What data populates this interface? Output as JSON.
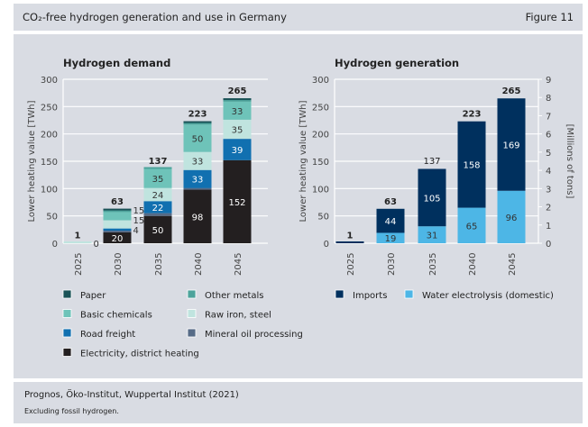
{
  "header": {
    "title": "CO₂-free hydrogen generation and use in Germany",
    "figure": "Figure 11"
  },
  "footer": {
    "source": "Prognos, Öko-Institut, Wuppertal Institut (2021)",
    "note": "Excluding fossil hydrogen."
  },
  "chart_data": [
    {
      "type": "bar",
      "stacked": true,
      "title": "Hydrogen demand",
      "ylabel": "Lower heating value [TWh]",
      "ylim": [
        0,
        300
      ],
      "yticks": [
        0,
        50,
        100,
        150,
        200,
        250,
        300
      ],
      "grid": true,
      "categories": [
        "2025",
        "2030",
        "2035",
        "2040",
        "2045"
      ],
      "totals": [
        "1",
        "63",
        "137",
        "223",
        "265"
      ],
      "series": [
        {
          "name": "Electricity, district heating",
          "color": "#231f20",
          "values": [
            0,
            20,
            50,
            98,
            152
          ],
          "labels": [
            null,
            "20",
            "50",
            "98",
            "152"
          ]
        },
        {
          "name": "Mineral oil processing",
          "color": "#566b87",
          "values": [
            0,
            3,
            5,
            3,
            0
          ],
          "labels": [
            null,
            null,
            null,
            null,
            null
          ]
        },
        {
          "name": "Road freight",
          "color": "#1170b0",
          "values": [
            0,
            4,
            22,
            33,
            39
          ],
          "labels": [
            null,
            "4",
            "22",
            "33",
            "39"
          ]
        },
        {
          "name": "Raw iron, steel",
          "color": "#c0e4df",
          "values": [
            0,
            15,
            24,
            33,
            35
          ],
          "labels": [
            "0",
            "15",
            "24",
            "33",
            "35"
          ]
        },
        {
          "name": "Basic chemicals",
          "color": "#6ec3b9",
          "values": [
            0,
            15,
            35,
            50,
            33
          ],
          "labels": [
            null,
            "15",
            "35",
            "50",
            "33"
          ]
        },
        {
          "name": "Other metals",
          "color": "#4da39b",
          "values": [
            0,
            3,
            1,
            3,
            3
          ],
          "labels": [
            null,
            null,
            null,
            null,
            null
          ]
        },
        {
          "name": "Paper",
          "color": "#1a5357",
          "values": [
            0,
            3,
            0,
            3,
            3
          ],
          "labels": [
            null,
            null,
            null,
            null,
            null
          ]
        }
      ],
      "legend_order": [
        "Paper",
        "Other metals",
        "Basic chemicals",
        "Raw iron, steel",
        "Road freight",
        "Mineral oil processing",
        "Electricity, district heating"
      ]
    },
    {
      "type": "bar",
      "stacked": true,
      "title": "Hydrogen generation",
      "ylabel": "Lower heating value [TWh]",
      "y2label": "[Millions of tons]",
      "ylim": [
        0,
        300
      ],
      "yticks": [
        0,
        50,
        100,
        150,
        200,
        250,
        300
      ],
      "y2lim": [
        0,
        9
      ],
      "y2ticks": [
        0,
        1,
        2,
        3,
        4,
        5,
        6,
        7,
        8,
        9
      ],
      "grid": true,
      "categories": [
        "2025",
        "2030",
        "2035",
        "2040",
        "2045"
      ],
      "totals": [
        "1",
        "63",
        "137",
        "223",
        "265"
      ],
      "series": [
        {
          "name": "Water electrolysis (domestic)",
          "color": "#4db6e6",
          "values": [
            0,
            19,
            31,
            65,
            96
          ],
          "labels": [
            null,
            "19",
            "31",
            "65",
            "96"
          ]
        },
        {
          "name": "Imports",
          "color": "#00305e",
          "values": [
            1,
            44,
            105,
            158,
            169
          ],
          "labels": [
            null,
            "44",
            "105",
            "158",
            "169"
          ]
        }
      ],
      "legend_order": [
        "Imports",
        "Water electrolysis (domestic)"
      ]
    }
  ]
}
